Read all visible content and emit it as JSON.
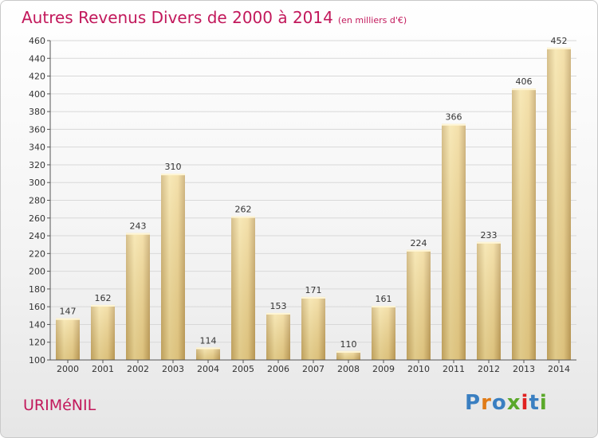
{
  "header": {
    "title": "Autres Revenus Divers de 2000 à 2014",
    "subtitle": "(en milliers d'€)"
  },
  "footer": {
    "city": "URIMéNIL",
    "logo": {
      "letters": [
        "P",
        "r",
        "o",
        "x",
        "i",
        "t",
        "i"
      ]
    }
  },
  "colors": {
    "title": "#c2185b",
    "bar_light": "#f6e3a1",
    "bar_dark": "#c4a664",
    "logo": [
      "#3a7fc1",
      "#e07b17",
      "#3a7fc1",
      "#5aa82a",
      "#e02020",
      "#3a7fc1",
      "#5aa82a"
    ]
  },
  "chart_data": {
    "type": "bar",
    "title": "Autres Revenus Divers de 2000 à 2014",
    "subtitle": "(en milliers d'€)",
    "categories": [
      "2000",
      "2001",
      "2002",
      "2003",
      "2004",
      "2005",
      "2006",
      "2007",
      "2008",
      "2009",
      "2010",
      "2011",
      "2012",
      "2013",
      "2014"
    ],
    "values": [
      147,
      162,
      243,
      310,
      114,
      262,
      153,
      171,
      110,
      161,
      224,
      366,
      233,
      406,
      452
    ],
    "ylim": [
      100,
      460
    ],
    "yticks": [
      100,
      120,
      140,
      160,
      180,
      200,
      220,
      240,
      260,
      280,
      300,
      320,
      340,
      360,
      380,
      400,
      420,
      440,
      460
    ],
    "grid": true,
    "data_labels": true
  }
}
